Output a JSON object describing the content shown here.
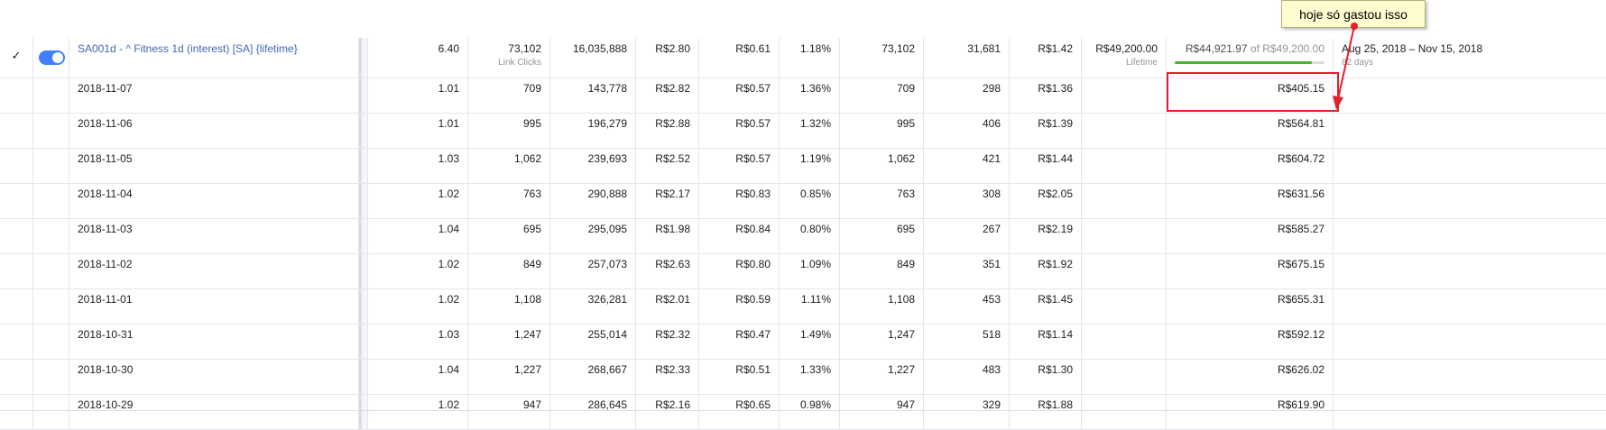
{
  "main_row": {
    "name": "SA001d - ^ Fitness 1d (interest) [SA] {lifetime}",
    "frequency": "6.40",
    "results": "73,102",
    "results_sub": "Link Clicks",
    "impressions": "16,035,888",
    "cpc": "R$2.80",
    "cpm": "R$0.61",
    "ctr": "1.18%",
    "clicks": "73,102",
    "unique": "31,681",
    "cost_unique": "R$1.42",
    "budget": "R$49,200.00",
    "budget_sub": "Lifetime",
    "spent": "R$44,921.97",
    "spent_of": "of R$49,200.00",
    "spent_progress": 0.913,
    "schedule": "Aug 25, 2018 – Nov 15, 2018",
    "schedule_sub": "82 days"
  },
  "rows": [
    {
      "date": "2018-11-07",
      "frequency": "1.01",
      "results": "709",
      "impressions": "143,778",
      "cpc": "R$2.82",
      "cpm": "R$0.57",
      "ctr": "1.36%",
      "clicks": "709",
      "unique": "298",
      "cost_unique": "R$1.36",
      "spent": "R$405.15"
    },
    {
      "date": "2018-11-06",
      "frequency": "1.01",
      "results": "995",
      "impressions": "196,279",
      "cpc": "R$2.88",
      "cpm": "R$0.57",
      "ctr": "1.32%",
      "clicks": "995",
      "unique": "406",
      "cost_unique": "R$1.39",
      "spent": "R$564.81"
    },
    {
      "date": "2018-11-05",
      "frequency": "1.03",
      "results": "1,062",
      "impressions": "239,693",
      "cpc": "R$2.52",
      "cpm": "R$0.57",
      "ctr": "1.19%",
      "clicks": "1,062",
      "unique": "421",
      "cost_unique": "R$1.44",
      "spent": "R$604.72"
    },
    {
      "date": "2018-11-04",
      "frequency": "1.02",
      "results": "763",
      "impressions": "290,888",
      "cpc": "R$2.17",
      "cpm": "R$0.83",
      "ctr": "0.85%",
      "clicks": "763",
      "unique": "308",
      "cost_unique": "R$2.05",
      "spent": "R$631.56"
    },
    {
      "date": "2018-11-03",
      "frequency": "1.04",
      "results": "695",
      "impressions": "295,095",
      "cpc": "R$1.98",
      "cpm": "R$0.84",
      "ctr": "0.80%",
      "clicks": "695",
      "unique": "267",
      "cost_unique": "R$2.19",
      "spent": "R$585.27"
    },
    {
      "date": "2018-11-02",
      "frequency": "1.02",
      "results": "849",
      "impressions": "257,073",
      "cpc": "R$2.63",
      "cpm": "R$0.80",
      "ctr": "1.09%",
      "clicks": "849",
      "unique": "351",
      "cost_unique": "R$1.92",
      "spent": "R$675.15"
    },
    {
      "date": "2018-11-01",
      "frequency": "1.02",
      "results": "1,108",
      "impressions": "326,281",
      "cpc": "R$2.01",
      "cpm": "R$0.59",
      "ctr": "1.11%",
      "clicks": "1,108",
      "unique": "453",
      "cost_unique": "R$1.45",
      "spent": "R$655.31"
    },
    {
      "date": "2018-10-31",
      "frequency": "1.03",
      "results": "1,247",
      "impressions": "255,014",
      "cpc": "R$2.32",
      "cpm": "R$0.47",
      "ctr": "1.49%",
      "clicks": "1,247",
      "unique": "518",
      "cost_unique": "R$1.14",
      "spent": "R$592.12"
    },
    {
      "date": "2018-10-30",
      "frequency": "1.04",
      "results": "1,227",
      "impressions": "268,667",
      "cpc": "R$2.33",
      "cpm": "R$0.51",
      "ctr": "1.33%",
      "clicks": "1,227",
      "unique": "483",
      "cost_unique": "R$1.30",
      "spent": "R$626.02"
    },
    {
      "date": "2018-10-29",
      "frequency": "1.02",
      "results": "947",
      "impressions": "286,645",
      "cpc": "R$2.16",
      "cpm": "R$0.65",
      "ctr": "0.98%",
      "clicks": "947",
      "unique": "329",
      "cost_unique": "R$1.88",
      "spent": "R$619.90"
    }
  ],
  "annotation": {
    "text": "hoje só gastou isso"
  },
  "colors": {
    "link": "#4267b2",
    "toggle_on": "#4080ff",
    "progress_fill": "#42b72a",
    "annotation_red": "#e0202a",
    "note_background": "#fffdd0"
  },
  "icons": {
    "select": "check-icon",
    "status": "toggle-switch"
  }
}
